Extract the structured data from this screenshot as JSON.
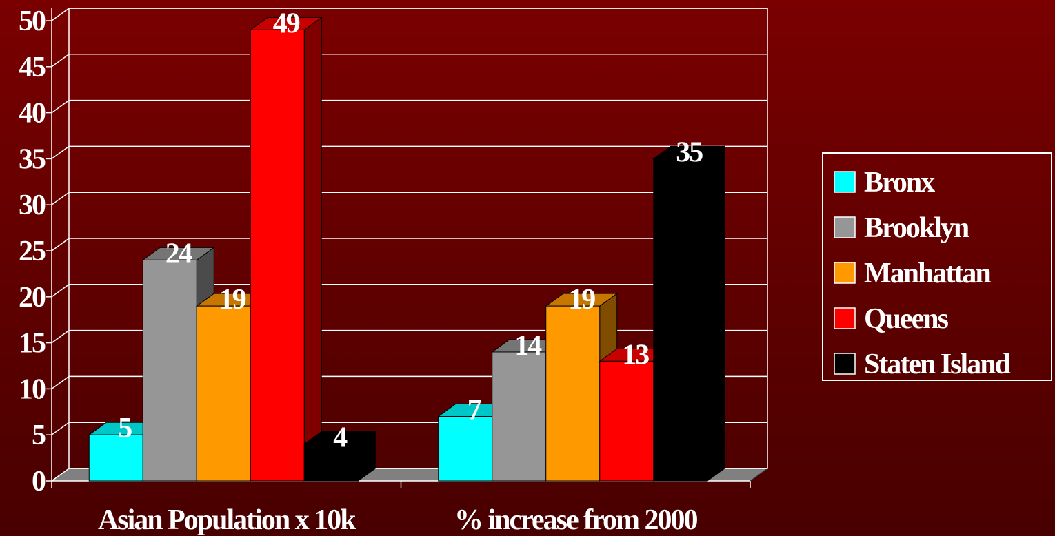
{
  "chart_data": {
    "type": "bar3d",
    "categories": [
      "Asian Population x 10k",
      "% increase from 2000"
    ],
    "series": [
      {
        "name": "Bronx",
        "color": "#00ffff",
        "values": [
          5,
          7
        ]
      },
      {
        "name": "Brooklyn",
        "color": "#969696",
        "values": [
          24,
          14
        ]
      },
      {
        "name": "Manhattan",
        "color": "#ff9900",
        "values": [
          19,
          19
        ]
      },
      {
        "name": "Queens",
        "color": "#ff0000",
        "values": [
          49,
          13
        ]
      },
      {
        "name": "Staten Island",
        "color": "#000000",
        "values": [
          4,
          35
        ]
      }
    ],
    "ylim": [
      0,
      50
    ],
    "yticks": [
      0,
      5,
      10,
      15,
      20,
      25,
      30,
      35,
      40,
      45,
      50
    ],
    "grid": true,
    "legend": "right"
  }
}
